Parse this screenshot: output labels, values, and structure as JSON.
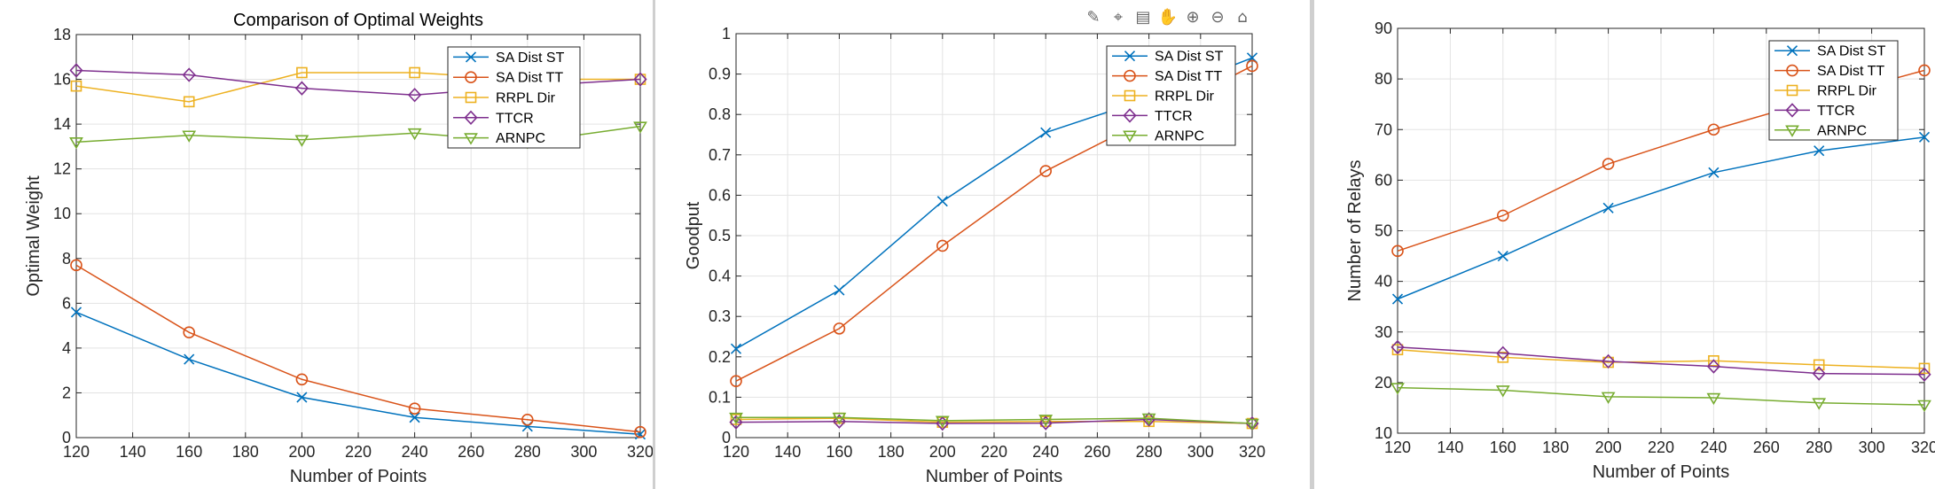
{
  "toolbar": {
    "icons": [
      "brush-icon",
      "datatip-icon",
      "legend-icon",
      "pan-icon",
      "zoom-in-icon",
      "zoom-out-icon",
      "home-icon"
    ]
  },
  "colors": {
    "SA Dist ST": "#0072BD",
    "SA Dist TT": "#D95319",
    "RRPL Dir": "#EDB120",
    "TTCR": "#7E2F8E",
    "ARNPC": "#77AC30"
  },
  "chart_data": [
    {
      "type": "line",
      "title": "Comparison of Optimal Weights",
      "xlabel": "Number of Points",
      "ylabel": "Optimal Weight",
      "xlim": [
        120,
        320
      ],
      "ylim": [
        0,
        18
      ],
      "xticks": [
        120,
        140,
        160,
        180,
        200,
        220,
        240,
        260,
        280,
        300,
        320
      ],
      "yticks": [
        0,
        2,
        4,
        6,
        8,
        10,
        12,
        14,
        16,
        18
      ],
      "grid": true,
      "legend_position": "top-right",
      "x": [
        120,
        160,
        200,
        240,
        280,
        320
      ],
      "series": [
        {
          "name": "SA Dist ST",
          "marker": "x",
          "values": [
            5.6,
            3.5,
            1.8,
            0.9,
            0.5,
            0.15
          ]
        },
        {
          "name": "SA Dist TT",
          "marker": "o",
          "values": [
            7.7,
            4.7,
            2.6,
            1.3,
            0.8,
            0.25
          ]
        },
        {
          "name": "RRPL Dir",
          "marker": "s",
          "values": [
            15.7,
            15.0,
            16.3,
            16.3,
            16.0,
            16.0
          ]
        },
        {
          "name": "TTCR",
          "marker": "d",
          "values": [
            16.4,
            16.2,
            15.6,
            15.3,
            15.7,
            16.0
          ]
        },
        {
          "name": "ARNPC",
          "marker": "v",
          "values": [
            13.2,
            13.5,
            13.3,
            13.6,
            13.2,
            13.9
          ]
        }
      ]
    },
    {
      "type": "line",
      "title": "",
      "xlabel": "Number of Points",
      "ylabel": "Goodput",
      "xlim": [
        120,
        320
      ],
      "ylim": [
        0,
        1
      ],
      "xticks": [
        120,
        140,
        160,
        180,
        200,
        220,
        240,
        260,
        280,
        300,
        320
      ],
      "yticks": [
        0,
        0.1,
        0.2,
        0.3,
        0.4,
        0.5,
        0.6,
        0.7,
        0.8,
        0.9,
        1
      ],
      "grid": true,
      "legend_position": "top-right",
      "x": [
        120,
        160,
        200,
        240,
        280,
        320
      ],
      "series": [
        {
          "name": "SA Dist ST",
          "marker": "x",
          "values": [
            0.22,
            0.365,
            0.585,
            0.755,
            0.84,
            0.94
          ]
        },
        {
          "name": "SA Dist TT",
          "marker": "o",
          "values": [
            0.14,
            0.27,
            0.475,
            0.66,
            0.79,
            0.92
          ]
        },
        {
          "name": "RRPL Dir",
          "marker": "s",
          "values": [
            0.045,
            0.048,
            0.038,
            0.04,
            0.04,
            0.035
          ]
        },
        {
          "name": "TTCR",
          "marker": "d",
          "values": [
            0.038,
            0.04,
            0.035,
            0.036,
            0.045,
            0.035
          ]
        },
        {
          "name": "ARNPC",
          "marker": "v",
          "values": [
            0.05,
            0.05,
            0.042,
            0.045,
            0.048,
            0.035
          ]
        }
      ]
    },
    {
      "type": "line",
      "title": "",
      "xlabel": "Number of Points",
      "ylabel": "Number of Relays",
      "xlim": [
        120,
        320
      ],
      "ylim": [
        10,
        90
      ],
      "xticks": [
        120,
        140,
        160,
        180,
        200,
        220,
        240,
        260,
        280,
        300,
        320
      ],
      "yticks": [
        10,
        20,
        30,
        40,
        50,
        60,
        70,
        80,
        90
      ],
      "grid": true,
      "legend_position": "top-right",
      "x": [
        120,
        160,
        200,
        240,
        280,
        320
      ],
      "series": [
        {
          "name": "SA Dist ST",
          "marker": "x",
          "values": [
            36.5,
            45.0,
            54.5,
            61.5,
            65.8,
            68.5
          ]
        },
        {
          "name": "SA Dist TT",
          "marker": "o",
          "values": [
            46.0,
            53.0,
            63.2,
            70.0,
            76.0,
            81.7
          ]
        },
        {
          "name": "RRPL Dir",
          "marker": "s",
          "values": [
            26.5,
            25.0,
            24.0,
            24.3,
            23.5,
            22.8
          ]
        },
        {
          "name": "TTCR",
          "marker": "d",
          "values": [
            27.0,
            25.8,
            24.2,
            23.2,
            21.8,
            21.6
          ]
        },
        {
          "name": "ARNPC",
          "marker": "v",
          "values": [
            19.0,
            18.5,
            17.2,
            17.0,
            16.0,
            15.6
          ]
        }
      ]
    }
  ]
}
